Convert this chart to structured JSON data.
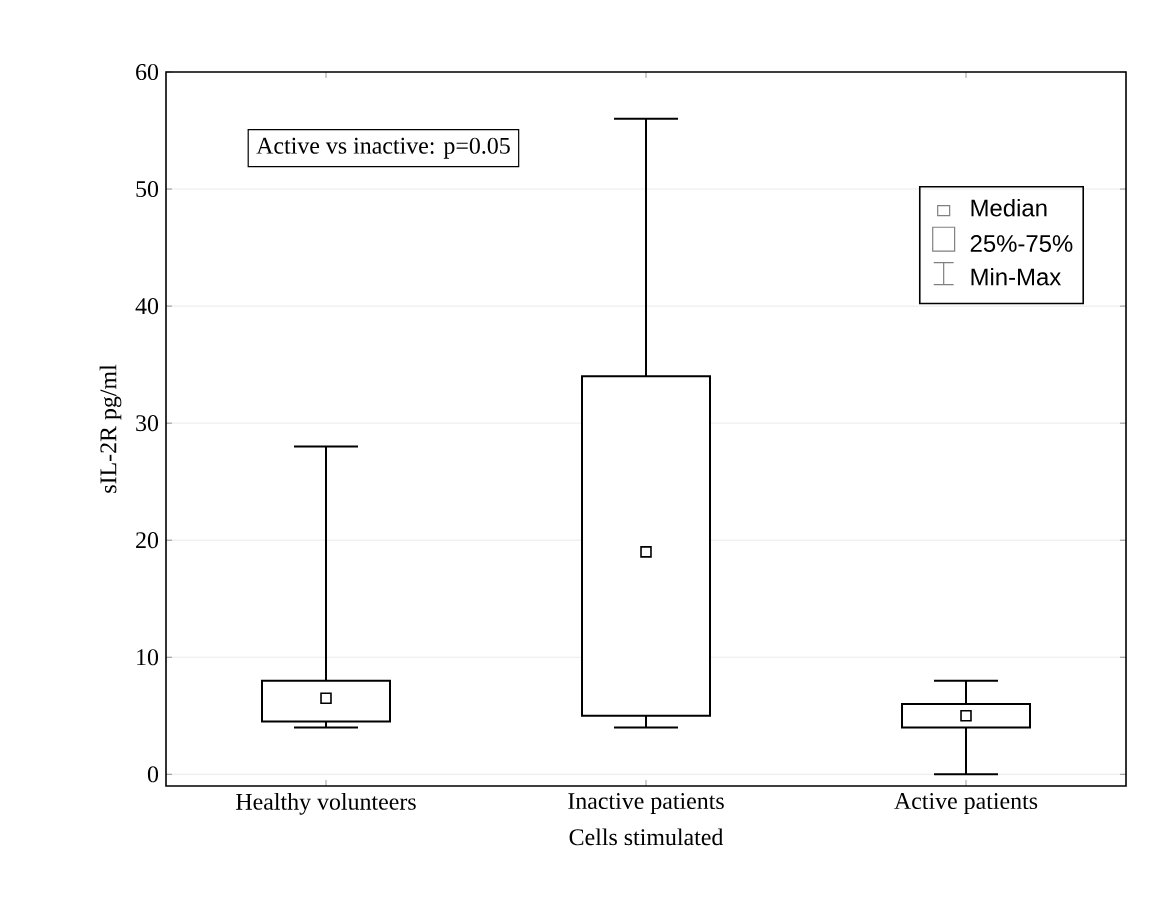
{
  "chart_data": {
    "type": "box",
    "xlabel": "Cells stimulated",
    "ylabel": "sIL-2R  pg/ml",
    "categories": [
      "Healthy volunteers",
      "Inactive patients",
      "Active patients"
    ],
    "boxes": [
      {
        "low": 4,
        "q1": 4.5,
        "median": 6.5,
        "q3": 8,
        "high": 28
      },
      {
        "low": 4,
        "q1": 5,
        "median": 19,
        "q3": 34,
        "high": 56
      },
      {
        "low": 0,
        "q1": 4,
        "median": 5,
        "q3": 6,
        "high": 8
      }
    ],
    "ylim": [
      -1,
      60
    ],
    "yticks": [
      0,
      10,
      20,
      30,
      40,
      50,
      60
    ],
    "grid": "y",
    "marker": "square",
    "annotations": [
      "Active vs inactive: p=0.05",
      "Median",
      "25%-75%",
      "Min-Max"
    ]
  }
}
